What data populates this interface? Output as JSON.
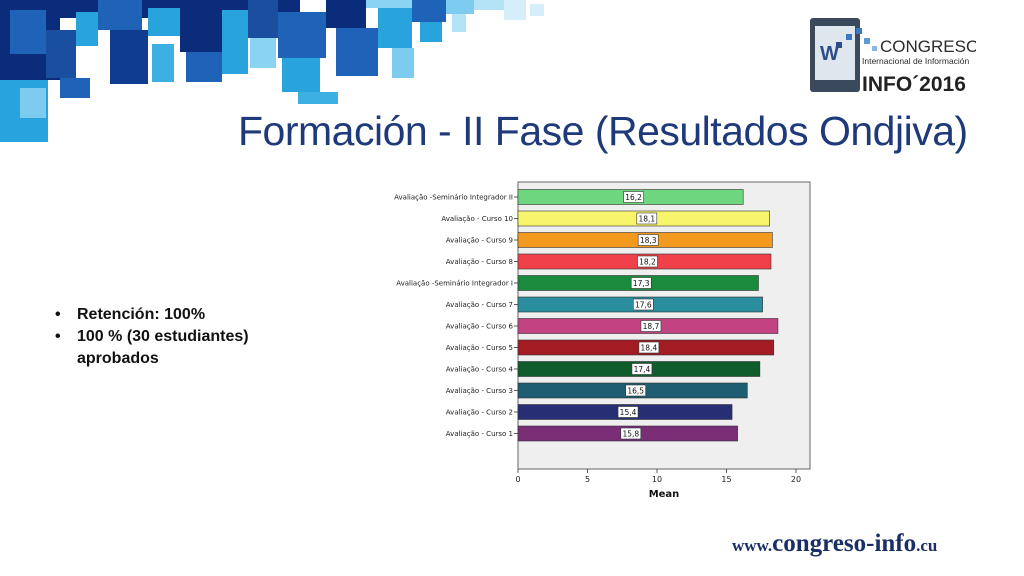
{
  "slide": {
    "title": "Formación - II Fase (Resultados Ondjiva)",
    "bullets": [
      "Retención: 100%",
      "100 % (30 estudiantes) aprobados"
    ]
  },
  "logo": {
    "line1": "CONGRESO",
    "line2": "Internacional de Información",
    "line3": "INFO´2016",
    "emblem": "W"
  },
  "footer": {
    "url_prefix": "www.",
    "url_main": "congreso-info",
    "url_suffix": ".cu"
  },
  "colors": {
    "title": "#1f3a7a",
    "mosaic_dark": "#0b2c7a",
    "mosaic_mid": "#1e63b8",
    "mosaic_light": "#29a3dc"
  },
  "chart_data": {
    "type": "bar",
    "orientation": "horizontal",
    "xlabel": "Mean",
    "xlim": [
      0,
      21
    ],
    "xticks": [
      0,
      5,
      10,
      15,
      20
    ],
    "categories": [
      "Avaliação -Seminário Integrador II",
      "Avaliação - Curso 10",
      "Avaliação - Curso 9",
      "Avaliação - Curso 8",
      "Avaliação -Seminário Integrador I",
      "Avaliação - Curso 7",
      "Avaliação - Curso 6",
      "Avaliação - Curso 5",
      "Avaliação - Curso 4",
      "Avaliação - Curso 3",
      "Avaliação - Curso 2",
      "Avaliação - Curso 1"
    ],
    "values": [
      16.2,
      18.1,
      18.3,
      18.2,
      17.3,
      17.6,
      18.7,
      18.4,
      17.4,
      16.5,
      15.4,
      15.8
    ],
    "labels": [
      "16,2",
      "18,1",
      "18,3",
      "18,2",
      "17,3",
      "17,6",
      "18,7",
      "18,4",
      "17,4",
      "16,5",
      "15,4",
      "15,8"
    ],
    "bar_colors": [
      "#6dd67f",
      "#f7f56b",
      "#f39a1e",
      "#f0414a",
      "#1a8a3c",
      "#2a8e9e",
      "#c24382",
      "#a31c24",
      "#0f5c2c",
      "#1f5e72",
      "#282e74",
      "#7a2e76"
    ],
    "grid": false
  }
}
